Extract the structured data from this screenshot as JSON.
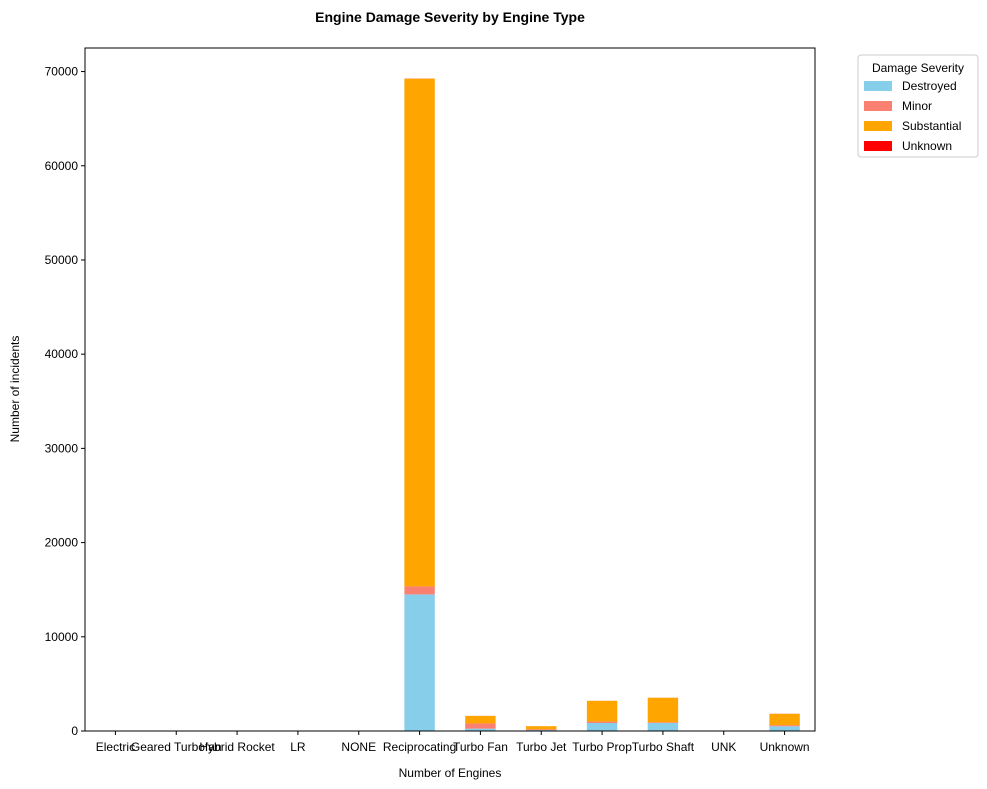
{
  "chart_data": {
    "type": "bar",
    "stacked": true,
    "title": "Engine Damage Severity by Engine Type",
    "xlabel": "Number of Engines",
    "ylabel": "Number of incidents",
    "ylim": [
      0,
      72500
    ],
    "yticks": [
      0,
      10000,
      20000,
      30000,
      40000,
      50000,
      60000,
      70000
    ],
    "grid": false,
    "legend_title": "Damage Severity",
    "legend_position": "outside-top-right",
    "categories": [
      "Electric",
      "Geared Turbofan",
      "Hybrid Rocket",
      "LR",
      "NONE",
      "Reciprocating",
      "Turbo Fan",
      "Turbo Jet",
      "Turbo Prop",
      "Turbo Shaft",
      "UNK",
      "Unknown"
    ],
    "series": [
      {
        "name": "Destroyed",
        "color": "#87ceeb",
        "values": [
          2,
          2,
          1,
          2,
          1,
          14500,
          250,
          100,
          850,
          850,
          1,
          500
        ]
      },
      {
        "name": "Minor",
        "color": "#fa8072",
        "values": [
          1,
          2,
          0,
          0,
          1,
          850,
          550,
          80,
          150,
          80,
          0,
          120
        ]
      },
      {
        "name": "Substantial",
        "color": "#ffa500",
        "values": [
          8,
          8,
          0,
          1,
          2,
          53900,
          800,
          330,
          2200,
          2600,
          1,
          1200
        ]
      },
      {
        "name": "Unknown",
        "color": "#ff0000",
        "values": [
          0,
          0,
          0,
          0,
          0,
          10,
          5,
          2,
          5,
          5,
          0,
          10
        ]
      }
    ]
  }
}
